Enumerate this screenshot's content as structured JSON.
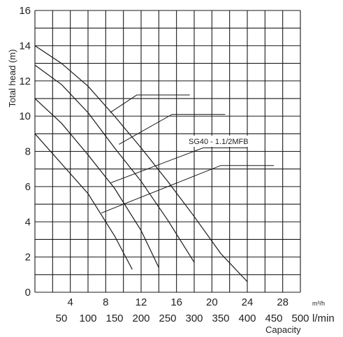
{
  "chart_data": {
    "type": "line",
    "title": "",
    "ylabel": "Total head  (m)",
    "xlabel": "Capacity",
    "x_unit_primary": "m³/h",
    "x_unit_secondary": "l/min",
    "xlim": [
      0,
      30
    ],
    "ylim": [
      0,
      16
    ],
    "grid": true,
    "y_ticks": [
      "16",
      "14",
      "12",
      "10",
      "8",
      "6",
      "4",
      "2",
      "0"
    ],
    "x_ticks_m3h": [
      "4",
      "8",
      "12",
      "16",
      "20",
      "24",
      "28"
    ],
    "x_ticks_lmin": [
      "50",
      "100",
      "150",
      "200",
      "250",
      "300",
      "350",
      "400",
      "450",
      "500"
    ],
    "annotation": "SG40 - 1.1/2MFB",
    "series": [
      {
        "x": [
          0,
          3,
          6,
          9,
          12,
          15,
          18,
          21,
          24
        ],
        "y": [
          14.0,
          13.0,
          11.7,
          10.0,
          8.2,
          6.3,
          4.3,
          2.2,
          0.6
        ]
      },
      {
        "x": [
          0,
          3,
          6,
          9,
          12,
          15,
          18
        ],
        "y": [
          12.9,
          11.8,
          10.2,
          8.2,
          6.3,
          4.1,
          1.7
        ]
      },
      {
        "x": [
          0,
          3,
          6,
          9,
          12,
          14
        ],
        "y": [
          11.0,
          9.6,
          7.8,
          5.9,
          3.5,
          1.4
        ]
      },
      {
        "x": [
          0,
          3,
          6,
          9,
          11
        ],
        "y": [
          9.0,
          7.3,
          5.6,
          3.2,
          1.3
        ]
      }
    ],
    "leaders": [
      {
        "from": [
          8.5,
          10.2
        ],
        "elbow": [
          11.5,
          11.2
        ],
        "to": [
          17.5,
          11.2
        ]
      },
      {
        "from": [
          9.5,
          8.4
        ],
        "elbow": [
          15.5,
          10.1
        ],
        "to": [
          21.5,
          10.1
        ]
      },
      {
        "from": [
          8.5,
          6.2
        ],
        "elbow": [
          19.0,
          8.2
        ],
        "to": [
          24.0,
          8.2
        ]
      },
      {
        "from": [
          7.5,
          4.5
        ],
        "elbow": [
          21.0,
          7.2
        ],
        "to": [
          27.0,
          7.2
        ]
      }
    ]
  }
}
